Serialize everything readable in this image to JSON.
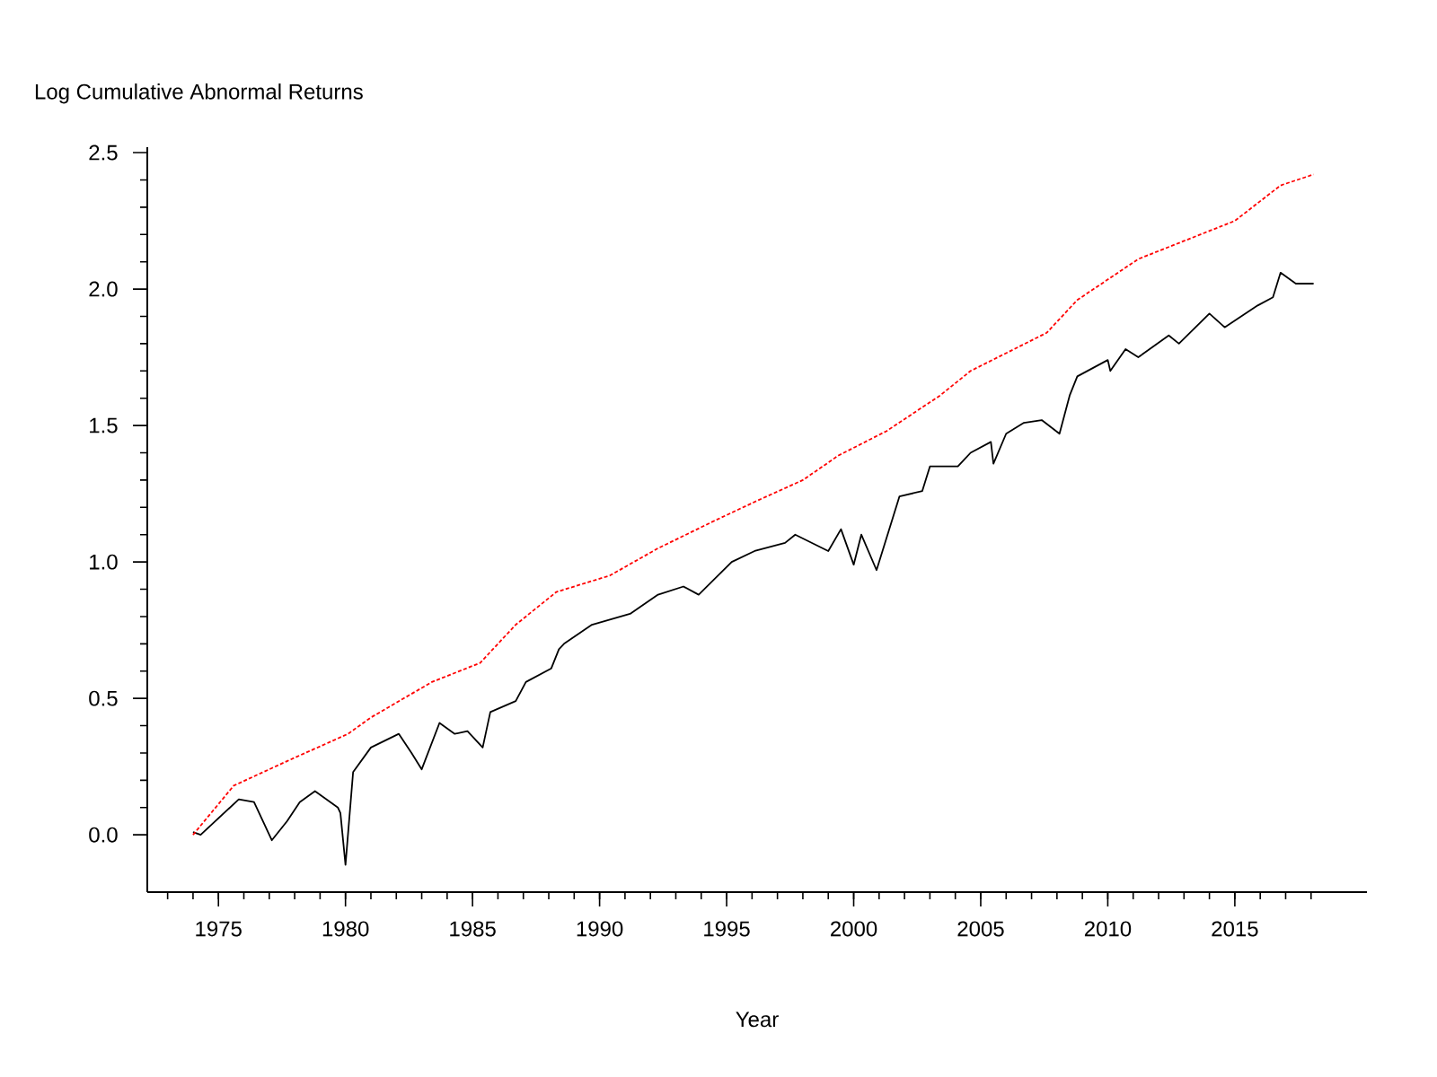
{
  "chart_data": {
    "type": "line",
    "ylabel": "Log Cumulative Abnormal Returns",
    "xlabel": "Year",
    "xlim": [
      1972.2,
      2020.2
    ],
    "xticks": [
      1975,
      1980,
      1985,
      1990,
      1995,
      2000,
      2005,
      2010,
      2015
    ],
    "ylim": [
      -0.21,
      2.52
    ],
    "yticks": [
      {
        "value": 0,
        "label": "0.0"
      },
      {
        "value": 0.5,
        "label": "0.5"
      },
      {
        "value": 1,
        "label": "1.0"
      },
      {
        "value": 1.5,
        "label": "1.5"
      },
      {
        "value": 2,
        "label": "2.0"
      },
      {
        "value": 2.5,
        "label": "2.5"
      }
    ],
    "marker": "none",
    "series": [
      {
        "color": "#000000",
        "line_style": "solid",
        "x": [
          1974.0,
          1974.3,
          1975.8,
          1976.4,
          1977.1,
          1977.7,
          1978.2,
          1978.8,
          1979.7,
          1979.8,
          1980.0,
          1980.3,
          1981.0,
          1982.1,
          1982.6,
          1983.0,
          1983.7,
          1984.3,
          1984.8,
          1985.4,
          1985.7,
          1986.7,
          1987.1,
          1988.1,
          1988.4,
          1988.6,
          1989.7,
          1991.2,
          1992.3,
          1993.3,
          1993.9,
          1995.2,
          1996.1,
          1997.3,
          1997.7,
          1999.0,
          1999.5,
          2000.0,
          2000.3,
          2000.9,
          2001.8,
          2002.7,
          2003.0,
          2004.1,
          2004.6,
          2005.4,
          2005.5,
          2006.0,
          2006.7,
          2007.4,
          2008.1,
          2008.5,
          2008.8,
          2010.0,
          2010.1,
          2010.7,
          2011.2,
          2012.4,
          2012.8,
          2014.0,
          2014.6,
          2015.9,
          2016.5,
          2016.8,
          2017.4,
          2018.1
        ],
        "values": [
          0.01,
          0.0,
          0.13,
          0.12,
          -0.02,
          0.05,
          0.12,
          0.16,
          0.1,
          0.08,
          -0.11,
          0.23,
          0.32,
          0.37,
          0.3,
          0.24,
          0.41,
          0.37,
          0.38,
          0.32,
          0.45,
          0.49,
          0.56,
          0.61,
          0.68,
          0.7,
          0.77,
          0.81,
          0.88,
          0.91,
          0.88,
          1.0,
          1.04,
          1.07,
          1.1,
          1.04,
          1.12,
          0.99,
          1.1,
          0.97,
          1.24,
          1.26,
          1.35,
          1.35,
          1.4,
          1.44,
          1.36,
          1.47,
          1.51,
          1.52,
          1.47,
          1.61,
          1.68,
          1.74,
          1.7,
          1.78,
          1.75,
          1.83,
          1.8,
          1.91,
          1.86,
          1.94,
          1.97,
          2.06,
          2.02,
          2.02
        ]
      },
      {
        "color": "#ff0000",
        "line_style": "dashed",
        "x": [
          1974.0,
          1975.6,
          1977.7,
          1980.1,
          1981.0,
          1983.4,
          1985.3,
          1986.7,
          1988.3,
          1990.4,
          1992.3,
          1994.5,
          1996.1,
          1998.0,
          1999.4,
          2001.3,
          2003.4,
          2004.6,
          2007.6,
          2008.8,
          2011.2,
          2013.1,
          2015.0,
          2016.8,
          2018.1
        ],
        "values": [
          0.0,
          0.18,
          0.27,
          0.37,
          0.43,
          0.56,
          0.63,
          0.77,
          0.89,
          0.95,
          1.05,
          1.15,
          1.22,
          1.3,
          1.39,
          1.48,
          1.61,
          1.7,
          1.84,
          1.96,
          2.11,
          2.18,
          2.25,
          2.38,
          2.42
        ]
      }
    ]
  }
}
